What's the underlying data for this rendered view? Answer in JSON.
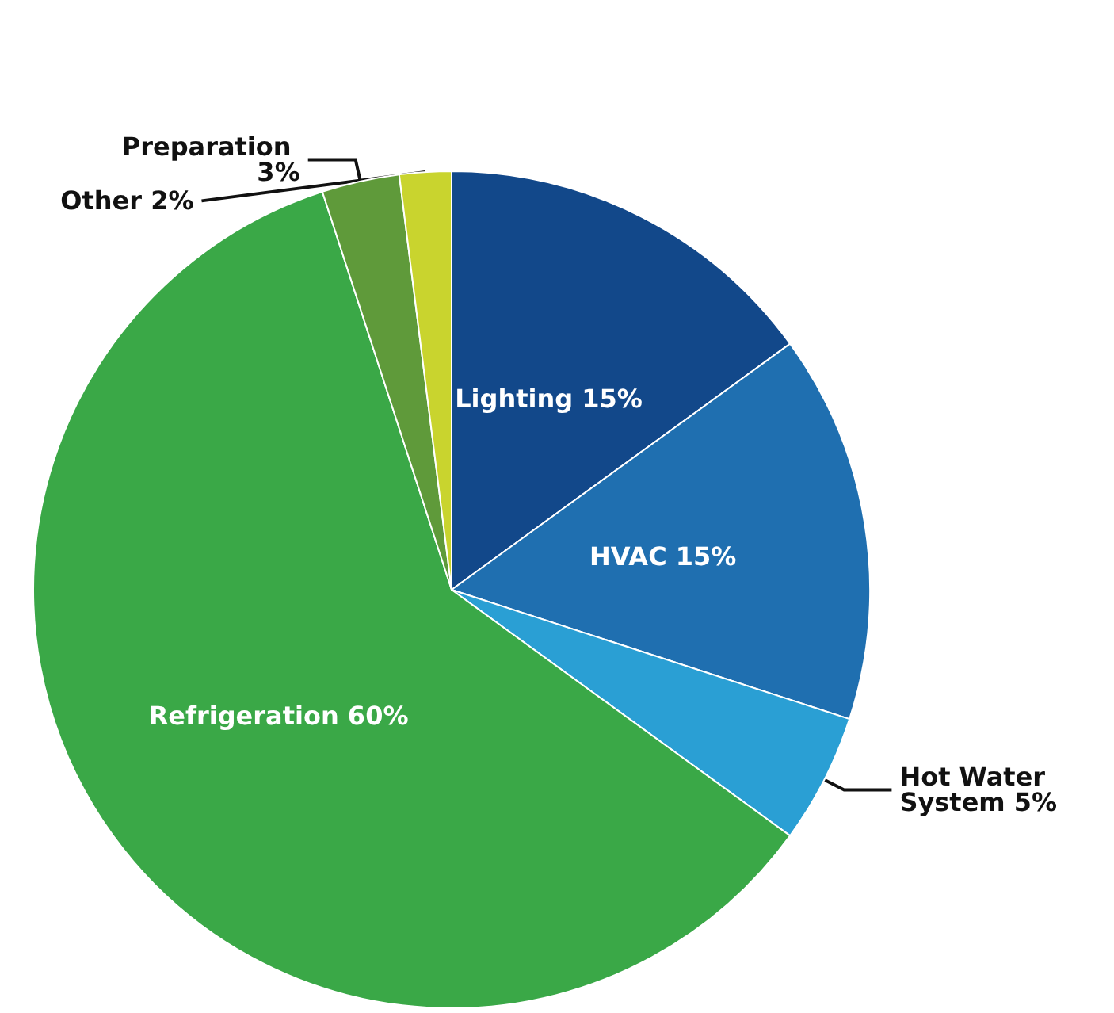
{
  "chart_data": {
    "type": "pie",
    "categories": [
      "Lighting",
      "HVAC",
      "Hot Water System",
      "Refrigeration",
      "Preparation",
      "Other"
    ],
    "values": [
      15,
      15,
      5,
      60,
      3,
      2
    ],
    "value_labels": [
      "15%",
      "15%",
      "5%",
      "60%",
      "3%",
      "2%"
    ],
    "colors": [
      "#12488a",
      "#1f6fb0",
      "#2a9fd4",
      "#3aa847",
      "#5f9a3a",
      "#c9d42e"
    ],
    "legend": false
  }
}
